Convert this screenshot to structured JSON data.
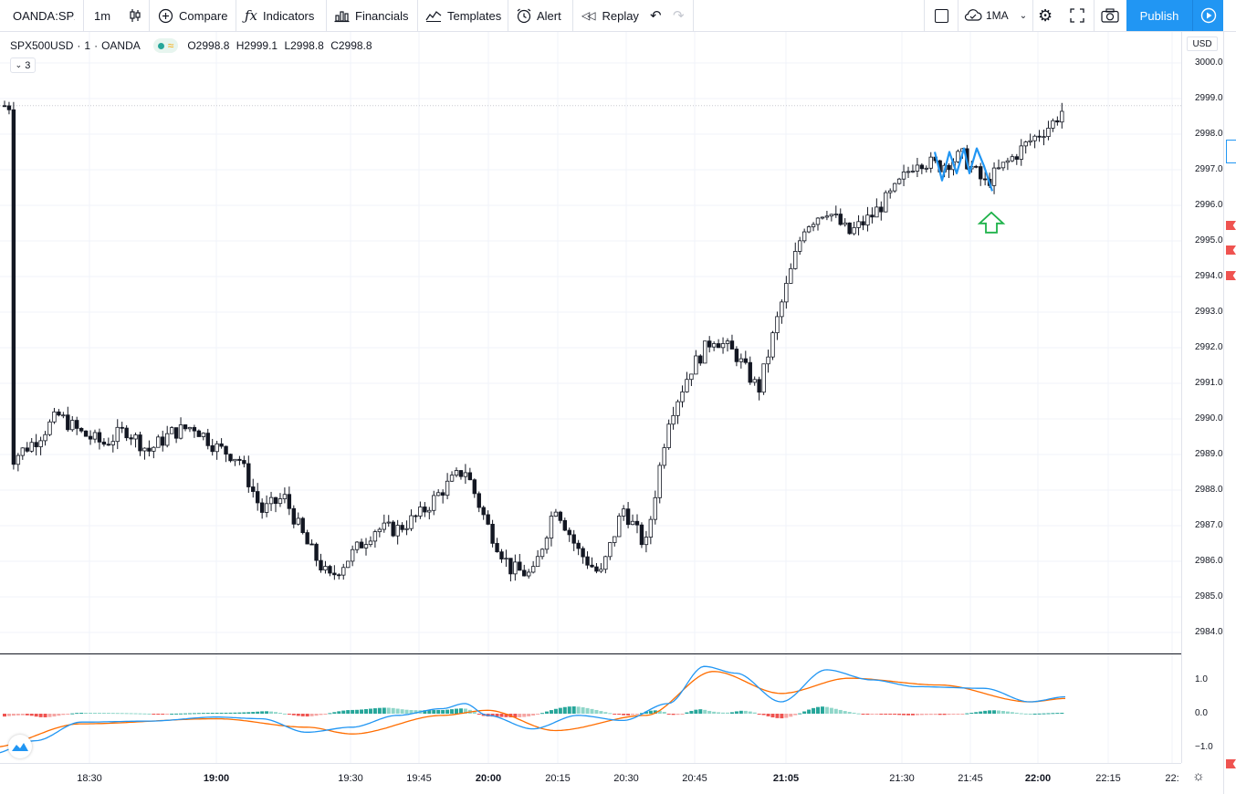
{
  "toolbar": {
    "symbol": "OANDA:SPX",
    "interval": "1m",
    "compare": "Compare",
    "indicators": "Indicators",
    "financials": "Financials",
    "templates": "Templates",
    "alert": "Alert",
    "replay": "Replay",
    "layout": "1MA",
    "publish": "Publish"
  },
  "legend": {
    "symbol": "SPX500USD",
    "interval": "1",
    "exchange": "OANDA",
    "dot": "·",
    "open": "O2998.8",
    "high": "H2999.1",
    "low": "L2998.8",
    "close": "C2998.8",
    "collapse_count": "3"
  },
  "currency": "USD",
  "price_ticks": [
    "3000.0",
    "2999.0",
    "2998.0",
    "2997.0",
    "2996.0",
    "2995.0",
    "2994.0",
    "2993.0",
    "2992.0",
    "2991.0",
    "2990.0",
    "2989.0",
    "2988.0",
    "2987.0",
    "2986.0",
    "2985.0",
    "2984.0"
  ],
  "osc_ticks": [
    "1.0",
    "0.0",
    "−1.0"
  ],
  "time_labels": [
    {
      "text": "18:30",
      "bold": false
    },
    {
      "text": "19:00",
      "bold": true
    },
    {
      "text": "19:30",
      "bold": false
    },
    {
      "text": "19:45",
      "bold": false
    },
    {
      "text": "20:00",
      "bold": true
    },
    {
      "text": "20:15",
      "bold": false
    },
    {
      "text": "20:30",
      "bold": false
    },
    {
      "text": "20:45",
      "bold": false
    },
    {
      "text": "21:05",
      "bold": true
    },
    {
      "text": "21:30",
      "bold": false
    },
    {
      "text": "21:45",
      "bold": false
    },
    {
      "text": "22:00",
      "bold": true
    },
    {
      "text": "22:15",
      "bold": false
    },
    {
      "text": "22:",
      "bold": false
    }
  ],
  "colors": {
    "candle": "#131722",
    "grid": "#f0f3fa",
    "drawing": "#2196f3",
    "arrow": "#1eb24a",
    "hist_up": "#26a69a",
    "hist_up_light": "#8fd6c9",
    "hist_down": "#ef5350",
    "hist_down_light": "#f5a6a4",
    "macd": "#2196f3",
    "signal": "#ff6d00",
    "accent": "#2196f3"
  },
  "chart_data": {
    "type": "candlestick",
    "symbol": "SPX500USD",
    "interval": "1",
    "price_range": [
      2983.5,
      3000.3
    ],
    "x_range": [
      "18:10",
      "22:25"
    ],
    "close_path": [
      {
        "t": "18:15",
        "p": 2988.9
      },
      {
        "t": "18:20",
        "p": 2989.4
      },
      {
        "t": "18:25",
        "p": 2990.1
      },
      {
        "t": "18:30",
        "p": 2989.6
      },
      {
        "t": "18:35",
        "p": 2989.3
      },
      {
        "t": "18:40",
        "p": 2989.7
      },
      {
        "t": "18:45",
        "p": 2989.1
      },
      {
        "t": "18:50",
        "p": 2989.6
      },
      {
        "t": "18:55",
        "p": 2989.8
      },
      {
        "t": "19:00",
        "p": 2989.2
      },
      {
        "t": "19:05",
        "p": 2988.9
      },
      {
        "t": "19:10",
        "p": 2987.4
      },
      {
        "t": "19:15",
        "p": 2987.8
      },
      {
        "t": "19:20",
        "p": 2986.5
      },
      {
        "t": "19:25",
        "p": 2985.5
      },
      {
        "t": "19:30",
        "p": 2986.2
      },
      {
        "t": "19:35",
        "p": 2986.9
      },
      {
        "t": "19:40",
        "p": 2986.9
      },
      {
        "t": "19:45",
        "p": 2987.3
      },
      {
        "t": "19:50",
        "p": 2988.0
      },
      {
        "t": "19:55",
        "p": 2988.6
      },
      {
        "t": "20:00",
        "p": 2987.0
      },
      {
        "t": "20:05",
        "p": 2985.8
      },
      {
        "t": "20:10",
        "p": 2985.6
      },
      {
        "t": "20:15",
        "p": 2987.6
      },
      {
        "t": "20:20",
        "p": 2986.3
      },
      {
        "t": "20:25",
        "p": 2985.6
      },
      {
        "t": "20:30",
        "p": 2987.5
      },
      {
        "t": "20:35",
        "p": 2986.4
      },
      {
        "t": "20:40",
        "p": 2990.0
      },
      {
        "t": "20:45",
        "p": 2991.4
      },
      {
        "t": "20:50",
        "p": 2992.3
      },
      {
        "t": "20:55",
        "p": 2991.8
      },
      {
        "t": "21:00",
        "p": 2990.8
      },
      {
        "t": "21:05",
        "p": 2993.2
      },
      {
        "t": "21:10",
        "p": 2995.4
      },
      {
        "t": "21:15",
        "p": 2995.9
      },
      {
        "t": "21:20",
        "p": 2995.2
      },
      {
        "t": "21:25",
        "p": 2995.7
      },
      {
        "t": "21:30",
        "p": 2996.4
      },
      {
        "t": "21:35",
        "p": 2997.3
      },
      {
        "t": "21:40",
        "p": 2997.1
      },
      {
        "t": "21:45",
        "p": 2997.4
      },
      {
        "t": "21:50",
        "p": 2996.6
      },
      {
        "t": "21:55",
        "p": 2997.2
      },
      {
        "t": "22:00",
        "p": 2997.8
      },
      {
        "t": "22:05",
        "p": 2998.3
      },
      {
        "t": "22:08",
        "p": 2998.8
      }
    ],
    "last": {
      "open": 2998.8,
      "high": 2999.1,
      "low": 2998.8,
      "close": 2998.8
    },
    "oscillator": {
      "range": [
        -1.2,
        1.45
      ],
      "macd": [
        {
          "t": "18:10",
          "v": -1.2
        },
        {
          "t": "18:20",
          "v": -0.8
        },
        {
          "t": "18:30",
          "v": -0.25
        },
        {
          "t": "18:45",
          "v": -0.22
        },
        {
          "t": "19:00",
          "v": -0.1
        },
        {
          "t": "19:10",
          "v": -0.15
        },
        {
          "t": "19:20",
          "v": -0.55
        },
        {
          "t": "19:30",
          "v": -0.4
        },
        {
          "t": "19:40",
          "v": -0.05
        },
        {
          "t": "19:50",
          "v": 0.15
        },
        {
          "t": "19:55",
          "v": 0.3
        },
        {
          "t": "20:00",
          "v": -0.05
        },
        {
          "t": "20:10",
          "v": -0.45
        },
        {
          "t": "20:20",
          "v": -0.05
        },
        {
          "t": "20:30",
          "v": -0.2
        },
        {
          "t": "20:40",
          "v": 0.3
        },
        {
          "t": "20:48",
          "v": 1.4
        },
        {
          "t": "20:55",
          "v": 1.2
        },
        {
          "t": "21:05",
          "v": 0.35
        },
        {
          "t": "21:15",
          "v": 1.3
        },
        {
          "t": "21:25",
          "v": 1.0
        },
        {
          "t": "21:35",
          "v": 0.8
        },
        {
          "t": "21:50",
          "v": 0.75
        },
        {
          "t": "22:00",
          "v": 0.35
        },
        {
          "t": "22:08",
          "v": 0.5
        }
      ],
      "signal": [
        {
          "t": "18:10",
          "v": -1.0
        },
        {
          "t": "18:30",
          "v": -0.3
        },
        {
          "t": "19:00",
          "v": -0.15
        },
        {
          "t": "19:20",
          "v": -0.4
        },
        {
          "t": "19:30",
          "v": -0.6
        },
        {
          "t": "19:50",
          "v": -0.05
        },
        {
          "t": "20:00",
          "v": 0.1
        },
        {
          "t": "20:15",
          "v": -0.5
        },
        {
          "t": "20:35",
          "v": -0.05
        },
        {
          "t": "20:50",
          "v": 1.25
        },
        {
          "t": "21:05",
          "v": 0.6
        },
        {
          "t": "21:20",
          "v": 1.05
        },
        {
          "t": "21:40",
          "v": 0.85
        },
        {
          "t": "22:00",
          "v": 0.35
        },
        {
          "t": "22:08",
          "v": 0.45
        }
      ],
      "histogram_note": "positive (teal) and negative (red) bars around zero"
    }
  }
}
